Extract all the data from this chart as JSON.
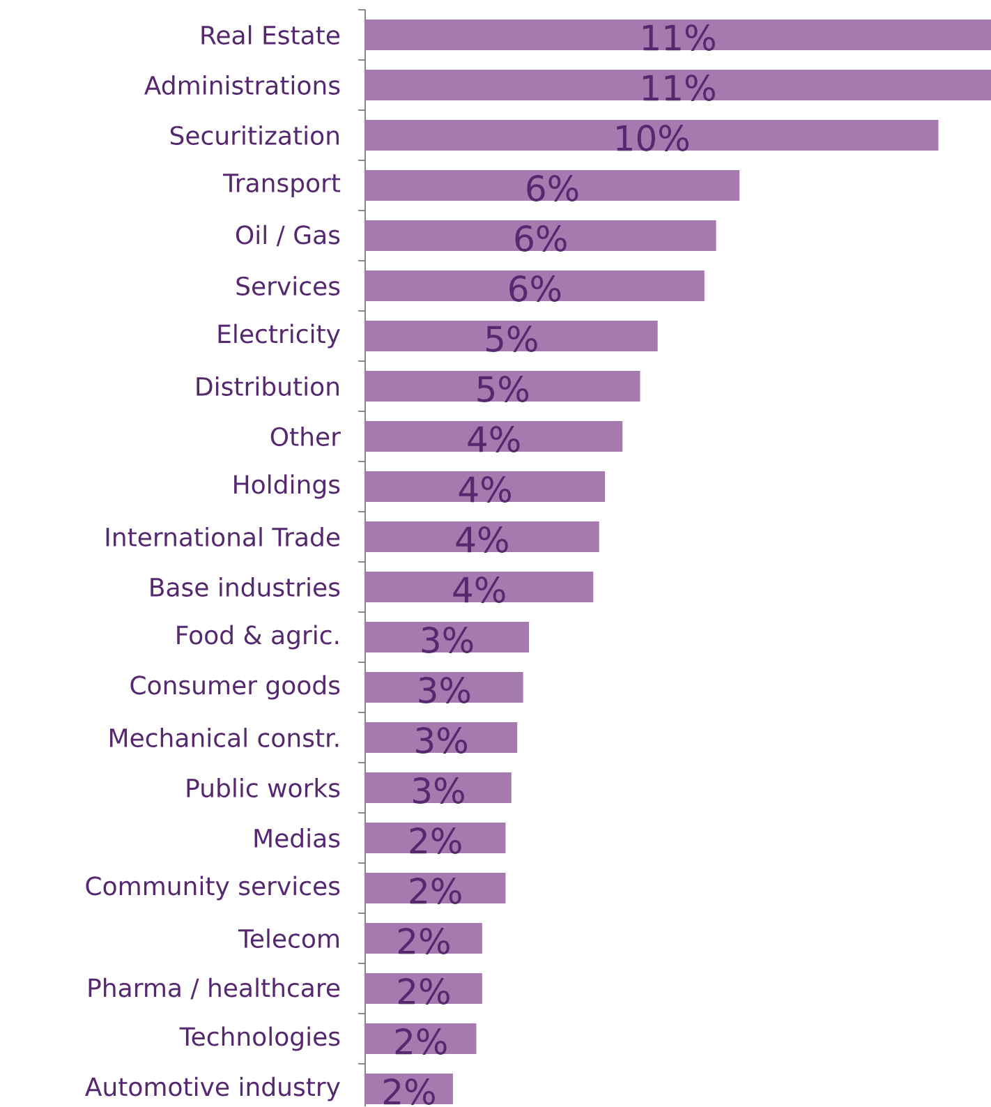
{
  "chart_data": {
    "type": "bar",
    "orientation": "horizontal",
    "color": "#a67aae",
    "categories": [
      "Real Estate",
      "Administrations",
      "Securitization",
      "Transport",
      "Oil / Gas",
      "Services",
      "Electricity",
      "Distribution",
      "Other",
      "Holdings",
      "International Trade",
      "Base industries",
      "Food & agric.",
      "Consumer goods",
      "Mechanical constr.",
      "Public works",
      "Medias",
      "Community services",
      "Telecom",
      "Pharma / healthcare",
      "Technologies",
      "Automotive industry"
    ],
    "values": [
      10.7,
      10.7,
      9.8,
      6.4,
      6.0,
      5.8,
      5.0,
      4.7,
      4.4,
      4.1,
      4.0,
      3.9,
      2.8,
      2.7,
      2.6,
      2.5,
      2.4,
      2.4,
      2.0,
      2.0,
      1.9,
      1.5
    ],
    "value_labels": [
      "11%",
      "11%",
      "10%",
      "6%",
      "6%",
      "6%",
      "5%",
      "5%",
      "4%",
      "4%",
      "4%",
      "4%",
      "3%",
      "3%",
      "3%",
      "3%",
      "2%",
      "2%",
      "2%",
      "2%",
      "2%",
      "2%"
    ]
  }
}
